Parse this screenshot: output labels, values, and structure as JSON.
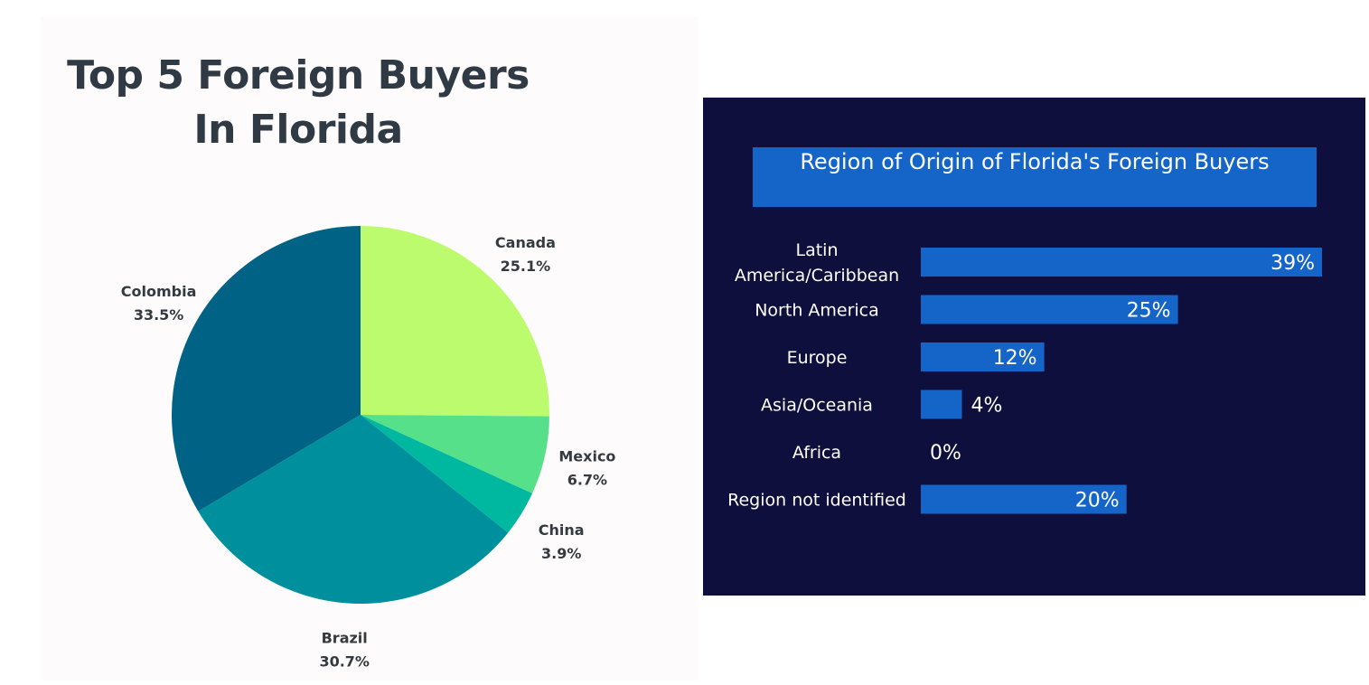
{
  "chart_data": [
    {
      "type": "pie",
      "title_lines": [
        "Top 5 Foreign Buyers",
        "In Florida"
      ],
      "slices": [
        {
          "label": "Canada",
          "value": 25.1,
          "display": "25.1%",
          "color": "#bdfb6e"
        },
        {
          "label": "Mexico",
          "value": 6.7,
          "display": "6.7%",
          "color": "#57e08a"
        },
        {
          "label": "China",
          "value": 3.9,
          "display": "3.9%",
          "color": "#00b8a0"
        },
        {
          "label": "Brazil",
          "value": 30.7,
          "display": "30.7%",
          "color": "#008f9c"
        },
        {
          "label": "Colombia",
          "value": 33.5,
          "display": "33.5%",
          "color": "#006284"
        }
      ]
    },
    {
      "type": "bar",
      "orientation": "horizontal",
      "title": "Region of Origin of Florida's Foreign Buyers",
      "categories": [
        "Latin America/Caribbean",
        "North America",
        "Europe",
        "Asia/Oceania",
        "Africa",
        "Region not identified"
      ],
      "category_lines": [
        [
          "Latin",
          "America/Caribbean"
        ],
        [
          "North America"
        ],
        [
          "Europe"
        ],
        [
          "Asia/Oceania"
        ],
        [
          "Africa"
        ],
        [
          "Region not identified"
        ]
      ],
      "values": [
        39,
        25,
        12,
        4,
        0,
        20
      ],
      "value_labels": [
        "39%",
        "25%",
        "12%",
        "4%",
        "0%",
        "20%"
      ],
      "bar_color": "#1565c8",
      "background": "#0e0f3c",
      "xlim": [
        0,
        39
      ]
    }
  ]
}
